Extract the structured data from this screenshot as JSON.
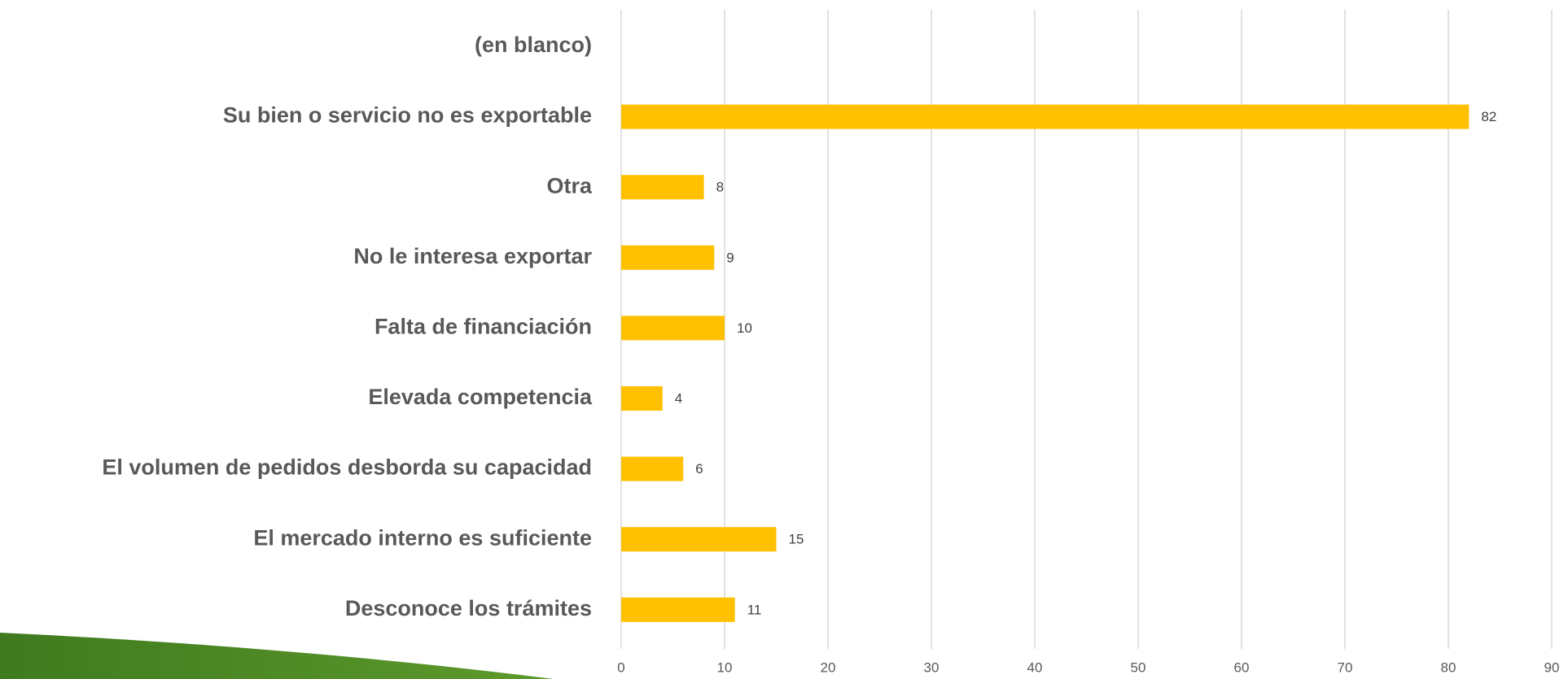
{
  "chart_data": {
    "type": "barh",
    "categories": [
      "(en blanco)",
      "Su bien o servicio no es exportable",
      "Otra",
      "No le interesa exportar",
      "Falta de financiación",
      "Elevada competencia",
      "El volumen de pedidos desborda su capacidad",
      "El mercado interno es suficiente",
      "Desconoce los trámites"
    ],
    "values": [
      null,
      82,
      8,
      9,
      10,
      4,
      6,
      15,
      11
    ],
    "color": "#FFC000",
    "xlim": [
      0,
      90
    ],
    "xticks": [
      0,
      10,
      20,
      30,
      40,
      50,
      60,
      70,
      80,
      90
    ],
    "grid": true
  }
}
